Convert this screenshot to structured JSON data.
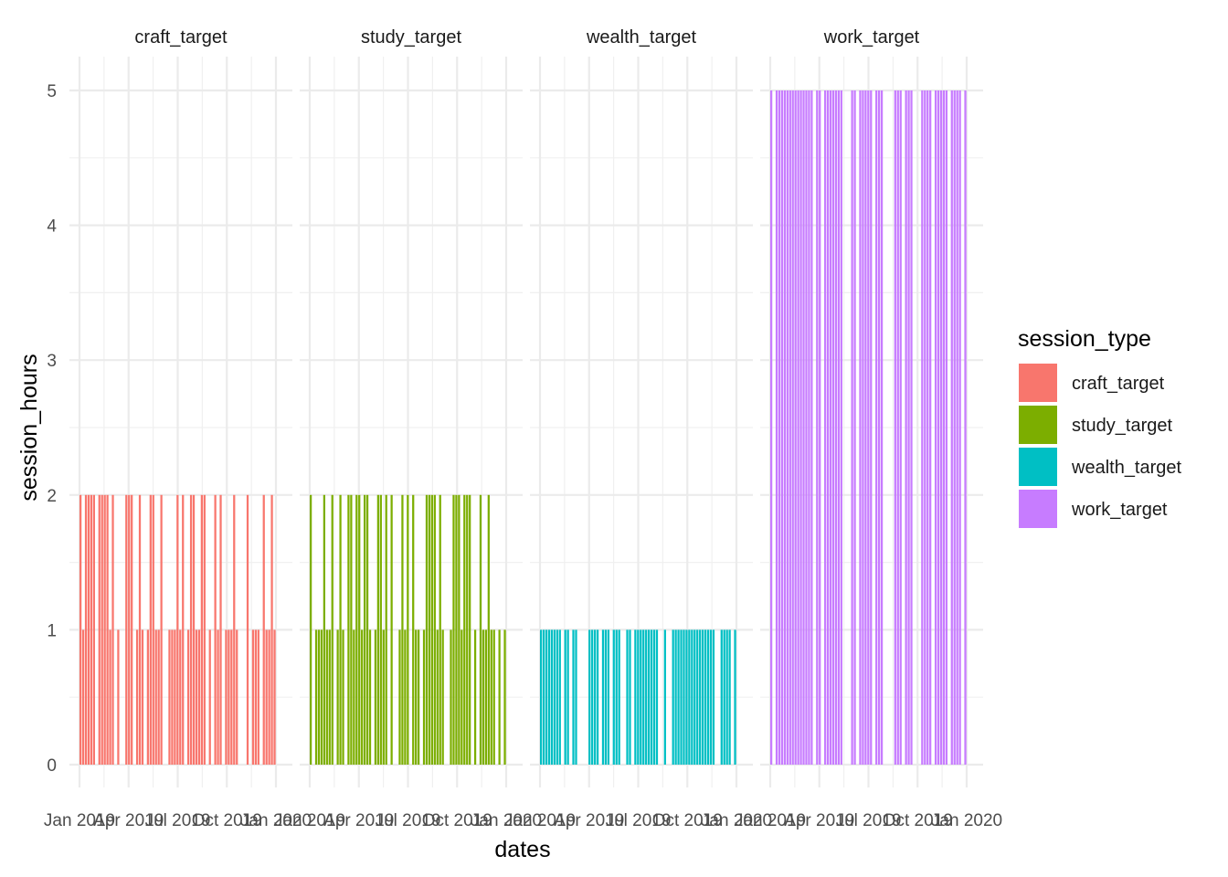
{
  "chart_data": {
    "type": "bar",
    "xlabel": "dates",
    "ylabel": "session_hours",
    "ylim": [
      0,
      5.2
    ],
    "y_ticks": [
      0,
      1,
      2,
      3,
      4,
      5
    ],
    "x_tick_labels": [
      "Jan 2019",
      "Apr 2019",
      "Jul 2019",
      "Oct 2019",
      "Jan 2020"
    ],
    "xlim": [
      "2019-01-01",
      "2020-01-01"
    ],
    "grid": true,
    "legend": {
      "title": "session_type",
      "placement": "right"
    },
    "series": [
      {
        "name": "craft_target",
        "color": "#F8766D",
        "base_value": 1,
        "peak_value": 2
      },
      {
        "name": "study_target",
        "color": "#7CAE00",
        "base_value": 1,
        "peak_value": 2
      },
      {
        "name": "wealth_target",
        "color": "#00BFC4",
        "base_value": 1,
        "peak_value": 1
      },
      {
        "name": "work_target",
        "color": "#C77CFF",
        "base_value": 5,
        "peak_value": 5
      }
    ]
  }
}
